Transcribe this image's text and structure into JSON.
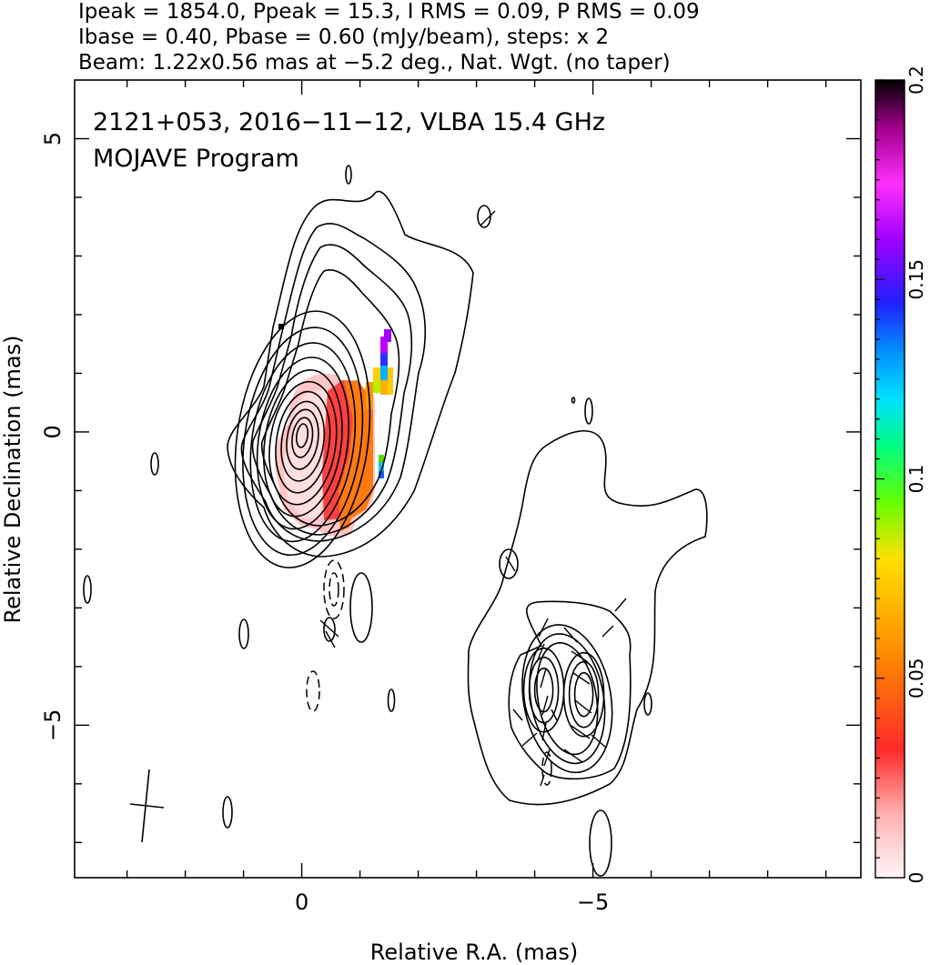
{
  "header": {
    "line1": "Ipeak = 1854.0, Ppeak = 15.3, I RMS = 0.09, P RMS = 0.09",
    "line2": "Ibase = 0.40, Pbase = 0.60 (mJy/beam), steps: x 2",
    "line3": "Beam: 1.22x0.56 mas at −5.2 deg., Nat. Wgt. (no taper)"
  },
  "chart_data": {
    "type": "heatmap",
    "title": "2121+053, 2016−11−12, VLBA 15.4 GHz",
    "subtitle": "MOJAVE Program",
    "xlabel": "Relative R.A. (mas)",
    "ylabel": "Relative Declination (mas)",
    "xlim": [
      3.9,
      -9.6
    ],
    "ylim": [
      -7.6,
      6.0
    ],
    "x_ticks": [
      0,
      -5
    ],
    "x_tick_labels": [
      "0",
      "−5"
    ],
    "y_ticks": [
      5,
      0,
      -5
    ],
    "y_tick_labels": [
      "5",
      "0",
      "−5"
    ],
    "colorbar": {
      "range": [
        0,
        0.2
      ],
      "ticks": [
        0,
        0.05,
        0.1,
        0.15,
        0.2
      ],
      "tick_labels": [
        "0",
        "0.05",
        "0.1",
        "0.15",
        "0.2"
      ],
      "colors": [
        "#fff6f6",
        "#ffb0b0",
        "#ff2a2a",
        "#ff8a00",
        "#ffe000",
        "#66ff00",
        "#00ff80",
        "#00e0ff",
        "#0090ff",
        "#2020ff",
        "#a000ff",
        "#ff30ff",
        "#a0008c",
        "#000000"
      ]
    },
    "core": {
      "ra": 0.0,
      "dec": 0.0
    },
    "knot": {
      "ra": -4.5,
      "dec": -4.4
    },
    "beam": {
      "major_mas": 1.22,
      "minor_mas": 0.56,
      "pa_deg": -5.2
    }
  }
}
